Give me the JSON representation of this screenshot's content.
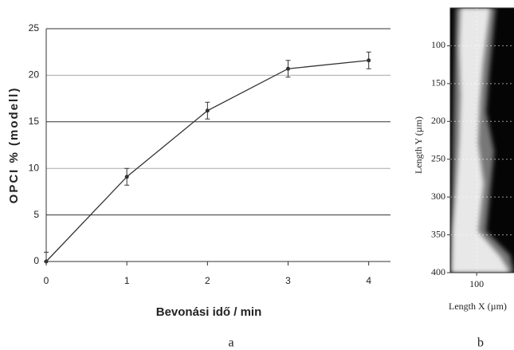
{
  "chart_data": [
    {
      "type": "line",
      "panel_label": "a",
      "xlabel": "Bevonási idő / min",
      "ylabel": "OPCI % (modell)",
      "x": [
        0,
        1,
        2,
        3,
        4
      ],
      "values": [
        0,
        9.1,
        16.2,
        20.7,
        21.6
      ],
      "errors": [
        1,
        0.9,
        0.9,
        0.9,
        0.9
      ],
      "color": "#333333",
      "xlim": [
        0,
        4.27
      ],
      "xticks": [
        0,
        1,
        2,
        3,
        4
      ],
      "ylim": [
        0,
        25
      ],
      "yticks": [
        0,
        5,
        10,
        15,
        20,
        25
      ],
      "grid": true
    },
    {
      "type": "image",
      "panel_label": "b",
      "xlabel": "Length X (µm)",
      "ylabel": "Length Y (µm)",
      "xlim": [
        65,
        150
      ],
      "xticks": [
        100
      ],
      "ylim": [
        400,
        50
      ],
      "yticks": [
        100,
        150,
        200,
        250,
        300,
        350,
        400
      ],
      "grid": true
    }
  ]
}
